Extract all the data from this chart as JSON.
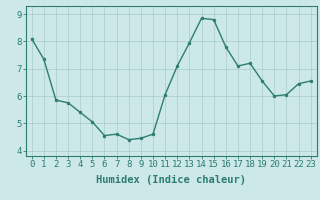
{
  "x": [
    0,
    1,
    2,
    3,
    4,
    5,
    6,
    7,
    8,
    9,
    10,
    11,
    12,
    13,
    14,
    15,
    16,
    17,
    18,
    19,
    20,
    21,
    22,
    23
  ],
  "y": [
    8.1,
    7.35,
    5.85,
    5.75,
    5.4,
    5.05,
    4.55,
    4.6,
    4.4,
    4.45,
    4.6,
    6.05,
    7.1,
    7.95,
    8.85,
    8.8,
    7.8,
    7.1,
    7.2,
    6.55,
    6.0,
    6.05,
    6.45,
    6.55
  ],
  "line_color": "#2d7d6f",
  "marker": "o",
  "marker_size": 2.0,
  "bg_color": "#cce8e8",
  "grid_color": "#b0d0d0",
  "xlabel": "Humidex (Indice chaleur)",
  "ylim": [
    3.8,
    9.3
  ],
  "xlim": [
    -0.5,
    23.5
  ],
  "yticks": [
    4,
    5,
    6,
    7,
    8,
    9
  ],
  "xticks": [
    0,
    1,
    2,
    3,
    4,
    5,
    6,
    7,
    8,
    9,
    10,
    11,
    12,
    13,
    14,
    15,
    16,
    17,
    18,
    19,
    20,
    21,
    22,
    23
  ],
  "xtick_labels": [
    "0",
    "1",
    "2",
    "3",
    "4",
    "5",
    "6",
    "7",
    "8",
    "9",
    "10",
    "11",
    "12",
    "13",
    "14",
    "15",
    "16",
    "17",
    "18",
    "19",
    "20",
    "21",
    "22",
    "23"
  ],
  "tick_fontsize": 6.5,
  "xlabel_fontsize": 7.5,
  "axis_color": "#2d7d6f",
  "spine_color": "#2d7d6f",
  "linewidth": 1.0
}
